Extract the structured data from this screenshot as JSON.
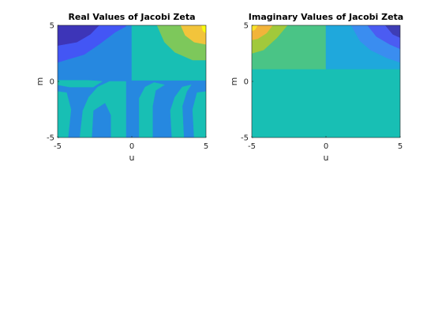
{
  "figure": {
    "background": "#ffffff"
  },
  "chart_data": [
    {
      "type": "contourf",
      "title": "Real Values of Jacobi Zeta",
      "xlabel": "u",
      "ylabel": "m",
      "xlim": [
        -5,
        5
      ],
      "ylim": [
        -5,
        5
      ],
      "xticks": [
        -5,
        0,
        5
      ],
      "yticks": [
        -5,
        0,
        5
      ],
      "xtick_labels": [
        "-5",
        "0",
        "5"
      ],
      "ytick_labels": [
        "-5",
        "0",
        "5"
      ],
      "colormap": "parula",
      "regions": [
        {
          "level": 3,
          "color": "#2688e0",
          "points": [
            [
              -5,
              5
            ],
            [
              5,
              5
            ],
            [
              5,
              -5
            ],
            [
              -5,
              -5
            ]
          ]
        },
        {
          "level": 4,
          "color": "#18bfb4",
          "points": [
            [
              0,
              5
            ],
            [
              5,
              5
            ],
            [
              5,
              0.1
            ],
            [
              0,
              0.1
            ]
          ]
        },
        {
          "level": 4,
          "color": "#18bfb4",
          "points": [
            [
              -5,
              0.1
            ],
            [
              -3,
              0.1
            ],
            [
              -2,
              0
            ],
            [
              -2.6,
              -0.5
            ],
            [
              -4.2,
              -0.5
            ],
            [
              -5,
              -0.3
            ]
          ]
        },
        {
          "level": 4,
          "color": "#18bfb4",
          "points": [
            [
              -5,
              -0.9
            ],
            [
              -4.4,
              -1.0
            ],
            [
              -4.1,
              -2.5
            ],
            [
              -4.3,
              -5
            ],
            [
              -5,
              -5
            ]
          ]
        },
        {
          "level": 4,
          "color": "#18bfb4",
          "points": [
            [
              -3.5,
              -5
            ],
            [
              -3.3,
              -2.6
            ],
            [
              -2.9,
              -1.4
            ],
            [
              -2.3,
              -0.5
            ],
            [
              -1.5,
              0
            ],
            [
              -0.4,
              0
            ],
            [
              -0.4,
              -5
            ],
            [
              -1.4,
              -5
            ],
            [
              -1.4,
              -3
            ],
            [
              -1.8,
              -1.9
            ],
            [
              -2.6,
              -2.6
            ],
            [
              -2.7,
              -5
            ]
          ]
        },
        {
          "level": 4,
          "color": "#18bfb4",
          "points": [
            [
              0.5,
              -5
            ],
            [
              0.5,
              -1.5
            ],
            [
              0.9,
              -0.5
            ],
            [
              1.5,
              -0.1
            ],
            [
              2.2,
              -0.3
            ],
            [
              1.6,
              -0.8
            ],
            [
              1.4,
              -2.2
            ],
            [
              1.4,
              -5
            ]
          ]
        },
        {
          "level": 4,
          "color": "#18bfb4",
          "points": [
            [
              2.7,
              -5
            ],
            [
              2.6,
              -2.6
            ],
            [
              2.9,
              -1.4
            ],
            [
              3.4,
              -0.5
            ],
            [
              4.0,
              -0.3
            ],
            [
              3.7,
              -0.9
            ],
            [
              3.4,
              -2.2
            ],
            [
              3.5,
              -5
            ]
          ]
        },
        {
          "level": 4,
          "color": "#18bfb4",
          "points": [
            [
              4.2,
              -5
            ],
            [
              4.1,
              -2.5
            ],
            [
              4.4,
              -1.0
            ],
            [
              5,
              -0.9
            ],
            [
              5,
              -5
            ]
          ]
        },
        {
          "level": 5,
          "color": "#7dc85b",
          "points": [
            [
              1.7,
              5
            ],
            [
              5,
              5
            ],
            [
              5,
              1.9
            ],
            [
              4.1,
              1.9
            ],
            [
              2.9,
              2.6
            ],
            [
              2.2,
              3.5
            ]
          ]
        },
        {
          "level": 6,
          "color": "#f2c43b",
          "points": [
            [
              3.3,
              5
            ],
            [
              5,
              5
            ],
            [
              5,
              3.3
            ],
            [
              4.2,
              3.5
            ],
            [
              3.6,
              4.1
            ]
          ]
        },
        {
          "level": 7,
          "color": "#f9fb0e",
          "points": [
            [
              4.7,
              5
            ],
            [
              5,
              5
            ],
            [
              5,
              4.3
            ],
            [
              4.8,
              4.5
            ]
          ]
        },
        {
          "level": 2,
          "color": "#4356f5",
          "points": [
            [
              -5,
              5
            ],
            [
              -0.4,
              5
            ],
            [
              -0.4,
              4.9
            ],
            [
              -1.1,
              4.4
            ],
            [
              -2.2,
              3.3
            ],
            [
              -3.2,
              2.4
            ],
            [
              -5,
              1.7
            ]
          ]
        },
        {
          "level": 1,
          "color": "#3d35b8",
          "points": [
            [
              -5,
              5
            ],
            [
              -2.2,
              5
            ],
            [
              -2.8,
              4.2
            ],
            [
              -3.7,
              3.5
            ],
            [
              -5,
              3.2
            ]
          ]
        }
      ]
    },
    {
      "type": "contourf",
      "title": "Imaginary Values of Jacobi Zeta",
      "xlabel": "u",
      "ylabel": "m",
      "xlim": [
        -5,
        5
      ],
      "ylim": [
        -5,
        5
      ],
      "xticks": [
        -5,
        0,
        5
      ],
      "yticks": [
        -5,
        0,
        5
      ],
      "xtick_labels": [
        "-5",
        "0",
        "5"
      ],
      "ytick_labels": [
        "-5",
        "0",
        "5"
      ],
      "colormap": "parula",
      "regions": [
        {
          "level": 4,
          "color": "#18bfb4",
          "points": [
            [
              -5,
              5
            ],
            [
              5,
              5
            ],
            [
              5,
              -5
            ],
            [
              -5,
              -5
            ]
          ]
        },
        {
          "level": 5,
          "color": "#4ac486",
          "points": [
            [
              -5,
              5
            ],
            [
              0,
              5
            ],
            [
              0,
              1.1
            ],
            [
              -5,
              1.1
            ]
          ]
        },
        {
          "level": 6,
          "color": "#a1c93b",
          "points": [
            [
              -5,
              5
            ],
            [
              -2.6,
              5
            ],
            [
              -3.3,
              3.9
            ],
            [
              -4.2,
              2.8
            ],
            [
              -5,
              2.5
            ]
          ]
        },
        {
          "level": 7,
          "color": "#f2b43a",
          "points": [
            [
              -5,
              5
            ],
            [
              -3.6,
              5
            ],
            [
              -4.0,
              4.3
            ],
            [
              -4.6,
              3.8
            ],
            [
              -5,
              3.7
            ]
          ]
        },
        {
          "level": 8,
          "color": "#f9e229",
          "points": [
            [
              -5,
              5
            ],
            [
              -4.6,
              5
            ],
            [
              -4.8,
              4.6
            ],
            [
              -5,
              4.5
            ]
          ]
        },
        {
          "level": 3,
          "color": "#1fa8dc",
          "points": [
            [
              0,
              5
            ],
            [
              5,
              5
            ],
            [
              5,
              1.1
            ],
            [
              0,
              1.1
            ]
          ]
        },
        {
          "level": 2,
          "color": "#3a8df0",
          "points": [
            [
              1.7,
              5
            ],
            [
              5,
              5
            ],
            [
              5,
              1.7
            ],
            [
              4.1,
              2.1
            ],
            [
              3.0,
              2.8
            ],
            [
              2.3,
              3.6
            ]
          ]
        },
        {
          "level": 1,
          "color": "#4b5cf2",
          "points": [
            [
              2.8,
              5
            ],
            [
              5,
              5
            ],
            [
              5,
              2.9
            ],
            [
              4.3,
              3.3
            ],
            [
              3.4,
              4.0
            ]
          ]
        },
        {
          "level": 0,
          "color": "#3e3db5",
          "points": [
            [
              4.0,
              5
            ],
            [
              5,
              5
            ],
            [
              5,
              3.9
            ],
            [
              4.5,
              4.2
            ]
          ]
        }
      ]
    }
  ]
}
